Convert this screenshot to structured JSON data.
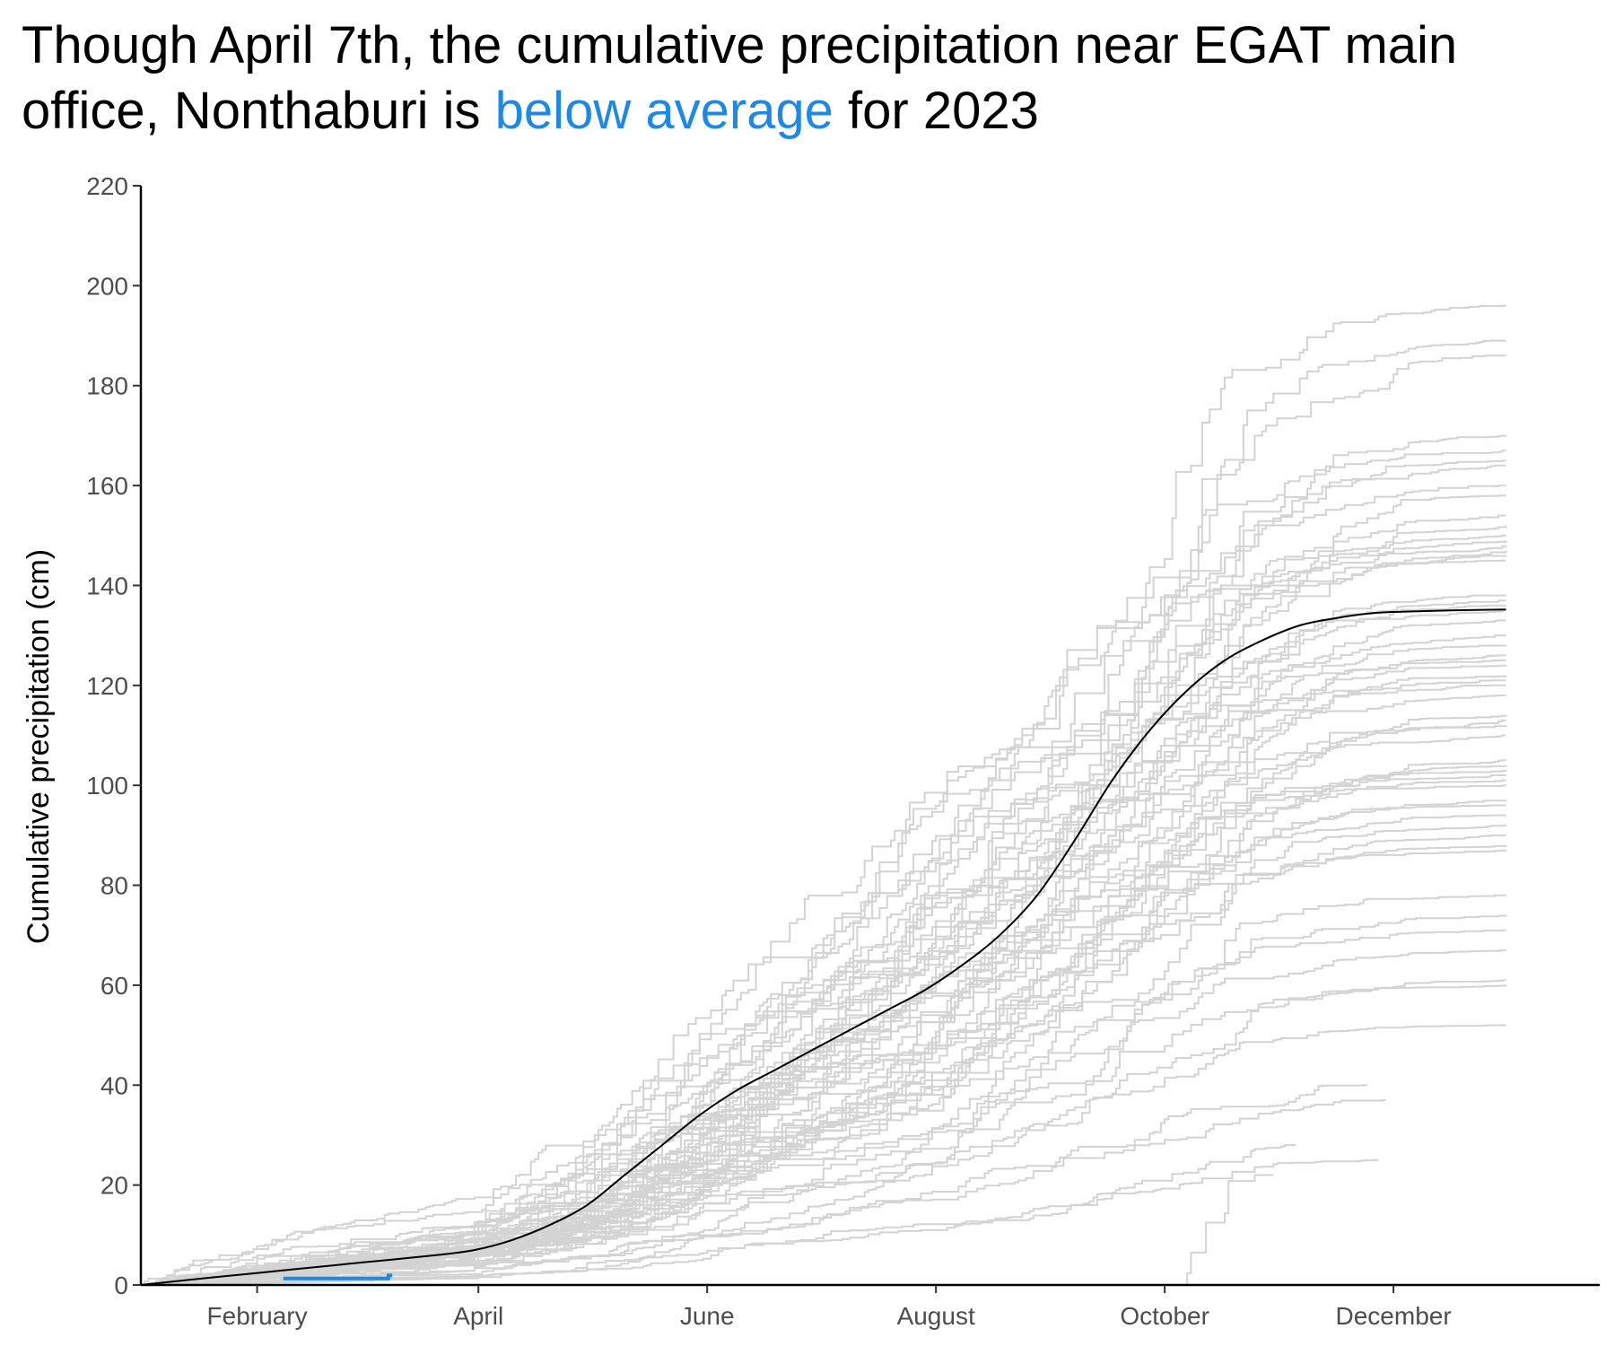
{
  "title": {
    "part1": "Though April 7th, the cumulative precipitation near EGAT main office, Nonthaburi is ",
    "highlight": "below average",
    "part2": "  for 2023"
  },
  "colors": {
    "historical": "#d3d3d3",
    "average": "#000000",
    "current": "#1e88e5",
    "highlight": "#1e88e5"
  },
  "chart_data": {
    "type": "line",
    "ylabel": "Cumulative precipitation (cm)",
    "xlabel": "",
    "xlim": [
      1,
      365
    ],
    "ylim": [
      0,
      220
    ],
    "y_ticks": [
      0,
      20,
      40,
      60,
      80,
      100,
      120,
      140,
      160,
      180,
      200,
      220
    ],
    "x_ticks": [
      {
        "label": "February",
        "day": 32
      },
      {
        "label": "April",
        "day": 91
      },
      {
        "label": "June",
        "day": 152
      },
      {
        "label": "August",
        "day": 213
      },
      {
        "label": "October",
        "day": 274
      },
      {
        "label": "December",
        "day": 335
      }
    ],
    "average_series": {
      "name": "",
      "x": [
        1,
        20,
        40,
        60,
        80,
        90,
        100,
        110,
        120,
        130,
        140,
        150,
        160,
        170,
        180,
        190,
        200,
        210,
        220,
        230,
        240,
        250,
        260,
        270,
        280,
        290,
        300,
        310,
        320,
        330,
        340,
        350,
        365
      ],
      "y": [
        0,
        1.5,
        3,
        4.5,
        6,
        7,
        9,
        12,
        16,
        22,
        28,
        34,
        39,
        43,
        47,
        51,
        55,
        59,
        64,
        70,
        78,
        89,
        101,
        111,
        119,
        125,
        129,
        132,
        133.5,
        134.5,
        134.8,
        135,
        135.2
      ]
    },
    "current_series": {
      "name": "2023",
      "x": [
        39,
        50,
        60,
        64,
        67,
        68
      ],
      "y": [
        1.3,
        1.3,
        1.3,
        1.3,
        1.9,
        1.9
      ]
    },
    "historical_series_count": 60,
    "historical_final_totals": [
      196,
      189,
      186,
      170,
      167,
      165,
      164,
      160,
      158,
      154,
      152,
      150,
      149,
      148,
      147,
      146,
      145,
      138,
      137,
      136,
      135,
      133,
      130,
      128,
      126,
      125,
      124,
      122,
      121,
      120,
      118,
      114,
      113,
      112,
      110,
      105,
      104,
      103,
      102,
      101,
      100,
      97,
      96,
      94,
      92,
      90,
      88,
      87,
      78,
      74,
      71,
      67,
      61,
      60,
      52,
      40,
      37,
      28,
      25,
      22
    ]
  }
}
